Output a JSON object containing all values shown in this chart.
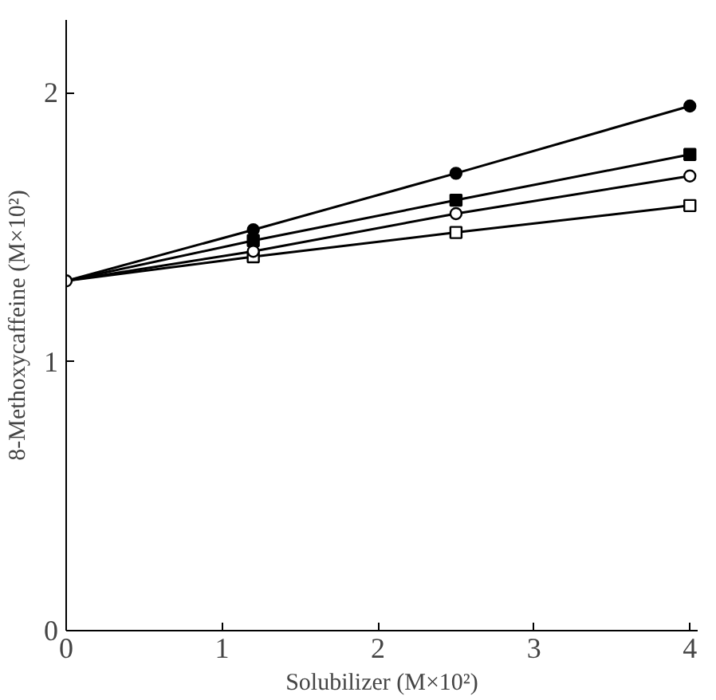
{
  "chart_data": {
    "type": "line",
    "xlabel": "Solubilizer (M×10²)",
    "ylabel": "8-Methoxycaffeine (M×10²)",
    "x": [
      0,
      1.2,
      2.5,
      4.0
    ],
    "xlim": [
      0,
      4.05
    ],
    "ylim": [
      0,
      2.27
    ],
    "xticks": [
      0,
      1,
      2,
      3,
      4
    ],
    "yticks": [
      0,
      1,
      2
    ],
    "grid": false,
    "series": [
      {
        "color": "#000000",
        "marker": "circle",
        "values": [
          1.3,
          1.49,
          1.7,
          1.95
        ]
      },
      {
        "color": "#000000",
        "marker": "square",
        "values": [
          1.3,
          1.45,
          1.6,
          1.77
        ]
      },
      {
        "color": "#ffffff",
        "marker": "square",
        "values": [
          1.3,
          1.39,
          1.48,
          1.58
        ]
      },
      {
        "color": "#ffffff",
        "marker": "circle",
        "values": [
          1.3,
          1.41,
          1.55,
          1.69
        ]
      }
    ]
  }
}
